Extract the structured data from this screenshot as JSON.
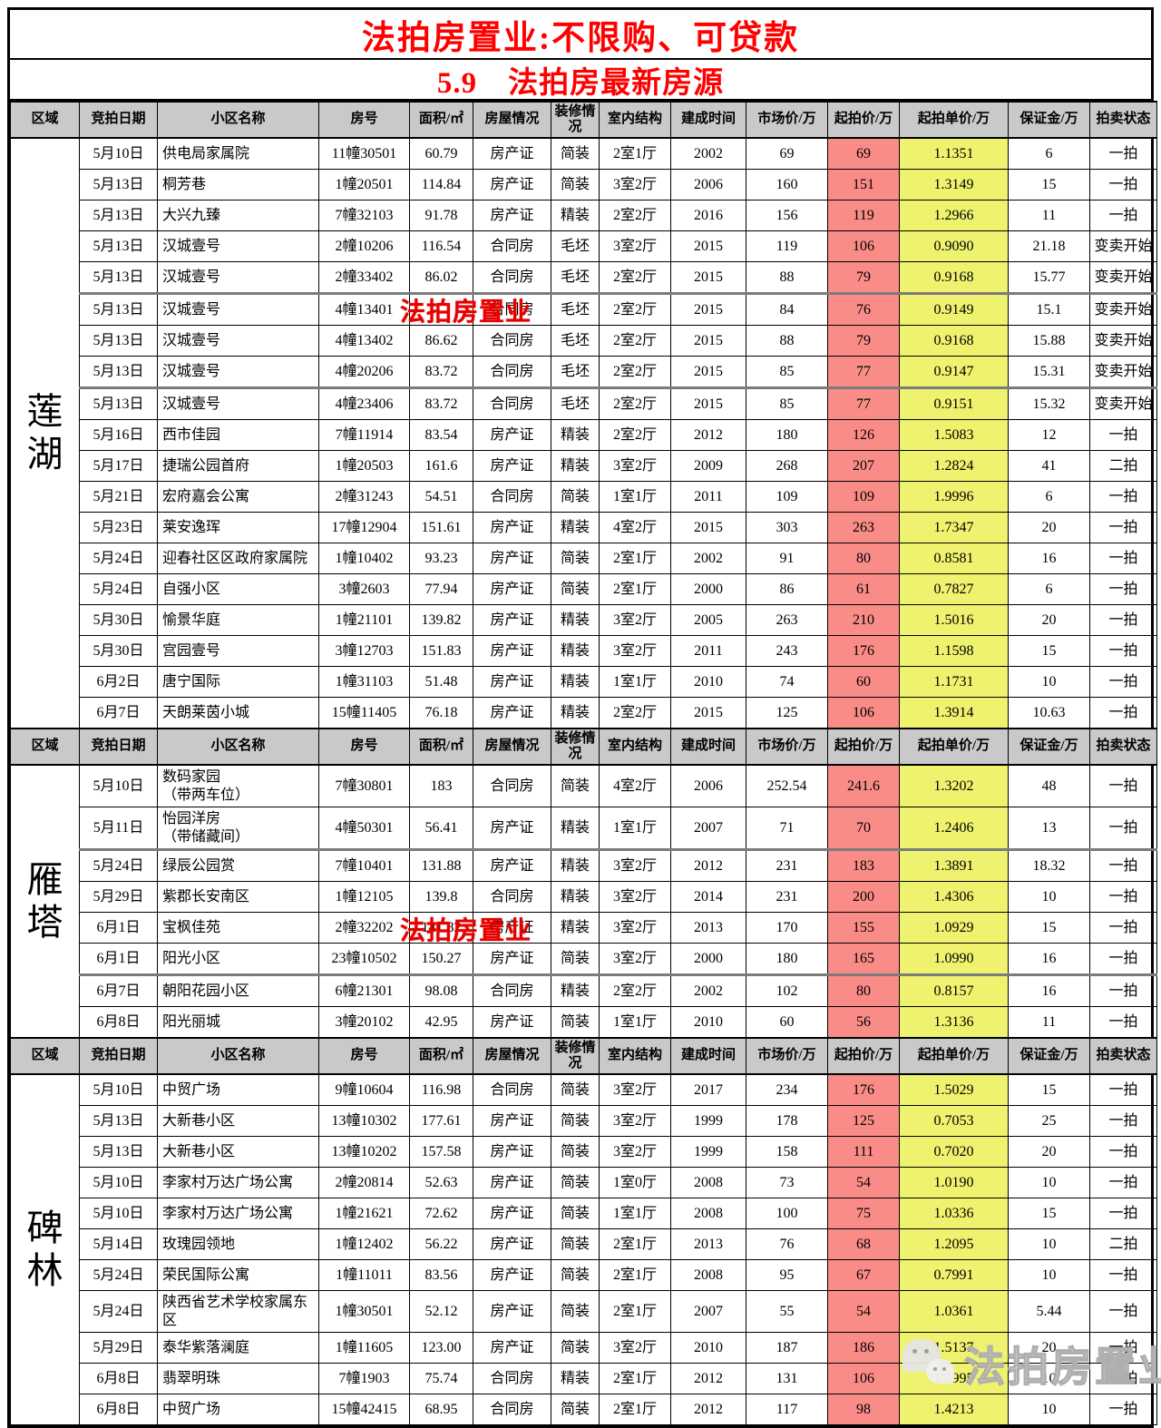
{
  "header": {
    "title": "法拍房置业:不限购、可贷款",
    "subtitle": "5.9　法拍房最新房源"
  },
  "columns": [
    "区域",
    "竞拍日期",
    "小区名称",
    "房号",
    "面积/㎡",
    "房屋情况",
    "装修情况",
    "室内结构",
    "建成时间",
    "市场价/万",
    "起拍价/万",
    "起拍单价/万",
    "保证金/万",
    "拍卖状态"
  ],
  "colors": {
    "start_price_bg": "#FA8C87",
    "unit_price_bg": "#EEF26E",
    "header_bg": "#C9C9C9",
    "title_red": "#FF0000",
    "watermark_red": "#E60000"
  },
  "watermarks": {
    "red_text": "法拍房置业",
    "gray_text": "法拍房置业",
    "gray_icon": "wechat-bubbles-icon"
  },
  "sections": [
    {
      "region": "莲湖",
      "tall_rows": [],
      "thick_after": [
        5,
        8
      ],
      "rows": [
        [
          "5月10日",
          "供电局家属院",
          "11幢30501",
          "60.79",
          "房产证",
          "简装",
          "2室1厅",
          "2002",
          "69",
          "69",
          "1.1351",
          "6",
          "一拍"
        ],
        [
          "5月13日",
          "桐芳巷",
          "1幢20501",
          "114.84",
          "房产证",
          "简装",
          "3室2厅",
          "2006",
          "160",
          "151",
          "1.3149",
          "15",
          "一拍"
        ],
        [
          "5月13日",
          "大兴九臻",
          "7幢32103",
          "91.78",
          "房产证",
          "精装",
          "2室2厅",
          "2016",
          "156",
          "119",
          "1.2966",
          "11",
          "一拍"
        ],
        [
          "5月13日",
          "汉城壹号",
          "2幢10206",
          "116.54",
          "合同房",
          "毛坯",
          "3室2厅",
          "2015",
          "119",
          "106",
          "0.9090",
          "21.18",
          "变卖开始"
        ],
        [
          "5月13日",
          "汉城壹号",
          "2幢33402",
          "86.02",
          "合同房",
          "毛坯",
          "2室2厅",
          "2015",
          "88",
          "79",
          "0.9168",
          "15.77",
          "变卖开始"
        ],
        [
          "5月13日",
          "汉城壹号",
          "4幢13401",
          "",
          "合同房",
          "毛坯",
          "2室2厅",
          "2015",
          "84",
          "76",
          "0.9149",
          "15.1",
          "变卖开始"
        ],
        [
          "5月13日",
          "汉城壹号",
          "4幢13402",
          "86.62",
          "合同房",
          "毛坯",
          "2室2厅",
          "2015",
          "88",
          "79",
          "0.9168",
          "15.88",
          "变卖开始"
        ],
        [
          "5月13日",
          "汉城壹号",
          "4幢20206",
          "83.72",
          "合同房",
          "毛坯",
          "2室2厅",
          "2015",
          "85",
          "77",
          "0.9147",
          "15.31",
          "变卖开始"
        ],
        [
          "5月13日",
          "汉城壹号",
          "4幢23406",
          "83.72",
          "合同房",
          "毛坯",
          "2室2厅",
          "2015",
          "85",
          "77",
          "0.9151",
          "15.32",
          "变卖开始"
        ],
        [
          "5月16日",
          "西市佳园",
          "7幢11914",
          "83.54",
          "房产证",
          "精装",
          "2室2厅",
          "2012",
          "180",
          "126",
          "1.5083",
          "12",
          "一拍"
        ],
        [
          "5月17日",
          "捷瑞公园首府",
          "1幢20503",
          "161.6",
          "房产证",
          "精装",
          "3室2厅",
          "2009",
          "268",
          "207",
          "1.2824",
          "41",
          "二拍"
        ],
        [
          "5月21日",
          "宏府嘉会公寓",
          "2幢31243",
          "54.51",
          "合同房",
          "简装",
          "1室1厅",
          "2011",
          "109",
          "109",
          "1.9996",
          "6",
          "一拍"
        ],
        [
          "5月23日",
          "莱安逸珲",
          "17幢12904",
          "151.61",
          "房产证",
          "精装",
          "4室2厅",
          "2015",
          "303",
          "263",
          "1.7347",
          "20",
          "一拍"
        ],
        [
          "5月24日",
          "迎春社区区政府家属院",
          "1幢10402",
          "93.23",
          "房产证",
          "简装",
          "2室1厅",
          "2002",
          "91",
          "80",
          "0.8581",
          "16",
          "一拍"
        ],
        [
          "5月24日",
          "自强小区",
          "3幢2603",
          "77.94",
          "房产证",
          "简装",
          "2室1厅",
          "2000",
          "86",
          "61",
          "0.7827",
          "6",
          "一拍"
        ],
        [
          "5月30日",
          "愉景华庭",
          "1幢21101",
          "139.82",
          "房产证",
          "精装",
          "3室2厅",
          "2005",
          "263",
          "210",
          "1.5016",
          "20",
          "一拍"
        ],
        [
          "5月30日",
          "宫园壹号",
          "3幢12703",
          "151.83",
          "房产证",
          "精装",
          "3室2厅",
          "2011",
          "243",
          "176",
          "1.1598",
          "15",
          "一拍"
        ],
        [
          "6月2日",
          "唐宁国际",
          "1幢31103",
          "51.48",
          "房产证",
          "精装",
          "1室1厅",
          "2010",
          "74",
          "60",
          "1.1731",
          "10",
          "一拍"
        ],
        [
          "6月7日",
          "天朗莱茵小城",
          "15幢11405",
          "76.18",
          "房产证",
          "精装",
          "2室2厅",
          "2015",
          "125",
          "106",
          "1.3914",
          "10.63",
          "一拍"
        ]
      ]
    },
    {
      "region": "雁塔",
      "tall_rows": [
        1,
        2
      ],
      "thick_after": [
        2,
        6
      ],
      "rows": [
        [
          "5月10日",
          "数码家园\n（带两车位）",
          "7幢30801",
          "183",
          "合同房",
          "简装",
          "4室2厅",
          "2006",
          "252.54",
          "241.6",
          "1.3202",
          "48",
          "一拍"
        ],
        [
          "5月11日",
          "怡园洋房\n（带储藏间）",
          "4幢50301",
          "56.41",
          "房产证",
          "精装",
          "1室1厅",
          "2007",
          "71",
          "70",
          "1.2406",
          "13",
          "一拍"
        ],
        [
          "5月24日",
          "绿辰公园赏",
          "7幢10401",
          "131.88",
          "房产证",
          "精装",
          "3室2厅",
          "2012",
          "231",
          "183",
          "1.3891",
          "18.32",
          "一拍"
        ],
        [
          "5月29日",
          "紫郡长安南区",
          "1幢12105",
          "139.8",
          "合同房",
          "精装",
          "3室2厅",
          "2014",
          "231",
          "200",
          "1.4306",
          "10",
          "一拍"
        ],
        [
          "6月1日",
          "宝枫佳苑",
          "2幢32202",
          "141.82",
          "房产证",
          "精装",
          "3室2厅",
          "2013",
          "170",
          "155",
          "1.0929",
          "15",
          "一拍"
        ],
        [
          "6月1日",
          "阳光小区",
          "23幢10502",
          "150.27",
          "房产证",
          "简装",
          "3室2厅",
          "2000",
          "180",
          "165",
          "1.0990",
          "16",
          "一拍"
        ],
        [
          "6月7日",
          "朝阳花园小区",
          "6幢21301",
          "98.08",
          "合同房",
          "精装",
          "2室2厅",
          "2002",
          "102",
          "80",
          "0.8157",
          "16",
          "一拍"
        ],
        [
          "6月8日",
          "阳光丽城",
          "3幢20102",
          "42.95",
          "房产证",
          "简装",
          "1室1厅",
          "2010",
          "60",
          "56",
          "1.3136",
          "11",
          "一拍"
        ]
      ]
    },
    {
      "region": "碑林",
      "tall_rows": [
        8
      ],
      "thick_after": [],
      "rows": [
        [
          "5月10日",
          "中贸广场",
          "9幢10604",
          "116.98",
          "合同房",
          "简装",
          "3室2厅",
          "2017",
          "234",
          "176",
          "1.5029",
          "15",
          "一拍"
        ],
        [
          "5月13日",
          "大新巷小区",
          "13幢10302",
          "177.61",
          "房产证",
          "简装",
          "3室2厅",
          "1999",
          "178",
          "125",
          "0.7053",
          "25",
          "一拍"
        ],
        [
          "5月13日",
          "大新巷小区",
          "13幢10202",
          "157.58",
          "房产证",
          "简装",
          "3室2厅",
          "1999",
          "158",
          "111",
          "0.7020",
          "20",
          "一拍"
        ],
        [
          "5月10日",
          "李家村万达广场公寓",
          "2幢20814",
          "52.63",
          "房产证",
          "简装",
          "1室0厅",
          "2008",
          "73",
          "54",
          "1.0190",
          "10",
          "一拍"
        ],
        [
          "5月10日",
          "李家村万达广场公寓",
          "1幢21621",
          "72.62",
          "房产证",
          "简装",
          "1室1厅",
          "2008",
          "100",
          "75",
          "1.0336",
          "15",
          "一拍"
        ],
        [
          "5月14日",
          "玫瑰园领地",
          "1幢12402",
          "56.22",
          "房产证",
          "简装",
          "2室1厅",
          "2013",
          "76",
          "68",
          "1.2095",
          "10",
          "二拍"
        ],
        [
          "5月24日",
          "荣民国际公寓",
          "1幢11011",
          "83.56",
          "房产证",
          "简装",
          "2室1厅",
          "2008",
          "95",
          "67",
          "0.7991",
          "10",
          "一拍"
        ],
        [
          "5月24日",
          "陕西省艺术学校家属东区",
          "1幢30501",
          "52.12",
          "房产证",
          "简装",
          "2室1厅",
          "2007",
          "55",
          "54",
          "1.0361",
          "5.44",
          "一拍"
        ],
        [
          "5月29日",
          "泰华紫落澜庭",
          "1幢11605",
          "123.00",
          "房产证",
          "简装",
          "3室2厅",
          "2010",
          "187",
          "186",
          "1.5137",
          "20",
          "一拍"
        ],
        [
          "6月8日",
          "翡翠明珠",
          "7幢1903",
          "75.74",
          "合同房",
          "精装",
          "2室1厅",
          "2012",
          "131",
          "106",
          "1.3995",
          "10",
          "一拍"
        ],
        [
          "6月8日",
          "中贸广场",
          "15幢42415",
          "68.95",
          "合同房",
          "简装",
          "2室1厅",
          "2012",
          "117",
          "98",
          "1.4213",
          "10",
          "一拍"
        ]
      ]
    }
  ]
}
